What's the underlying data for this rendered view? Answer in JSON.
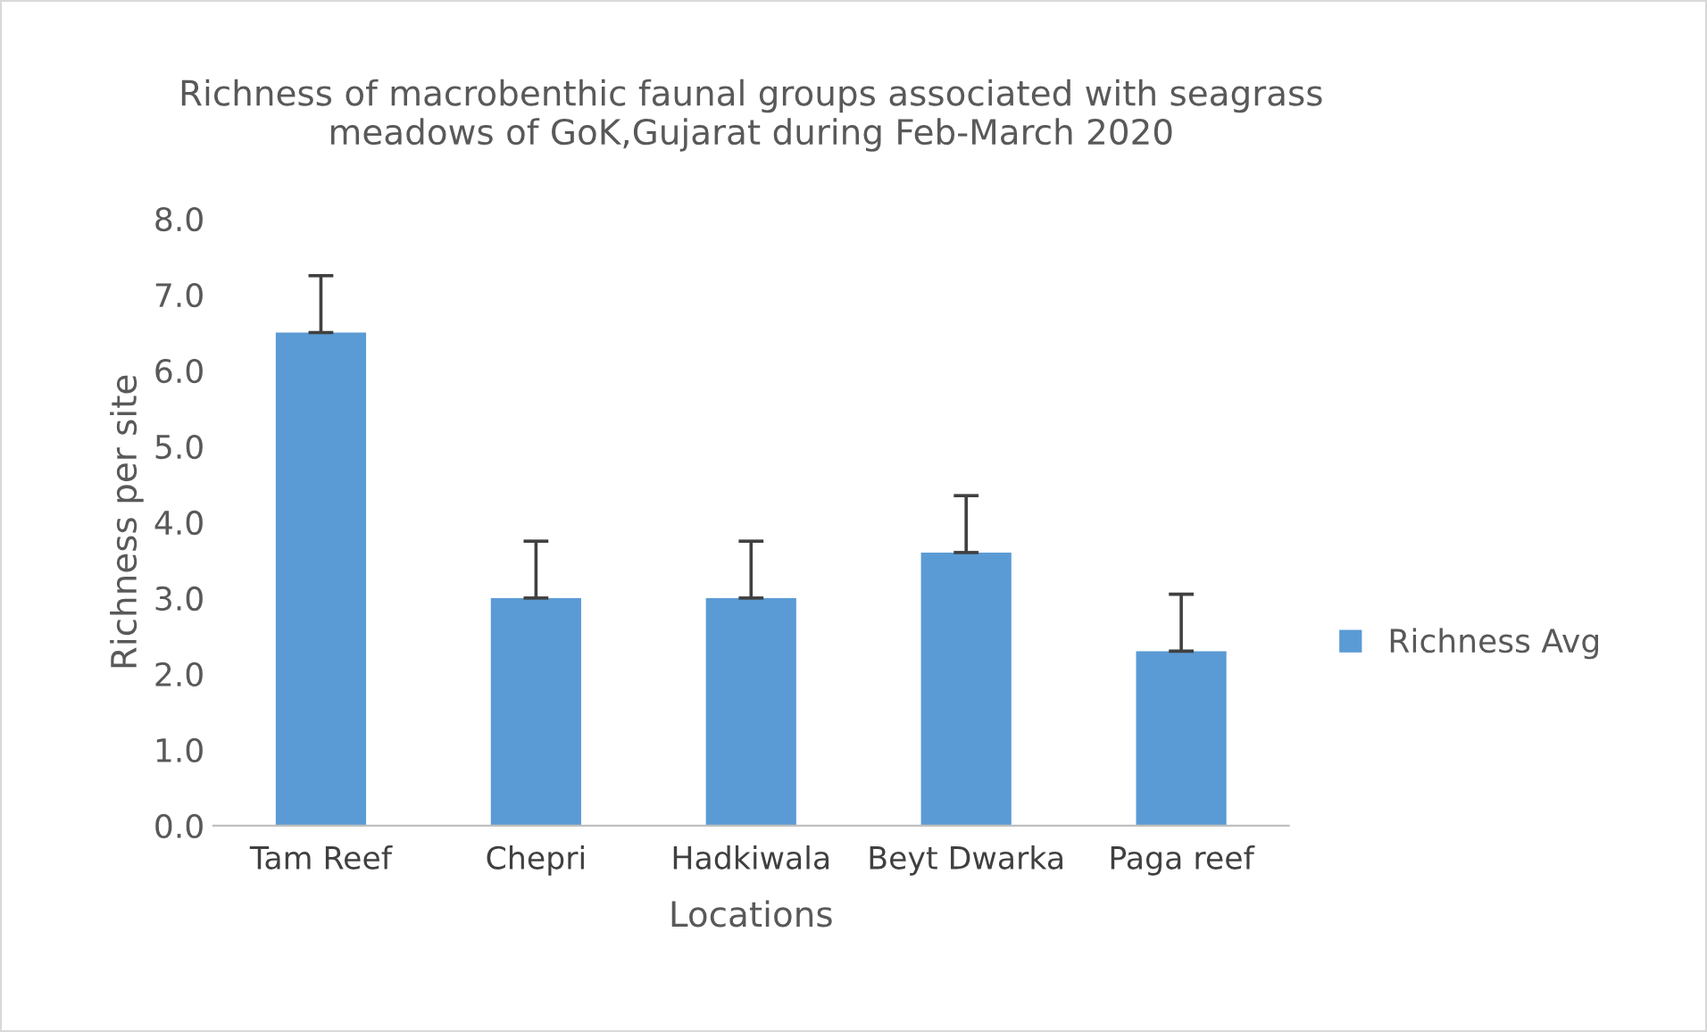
{
  "chart_data": {
    "type": "bar",
    "title": "Richness of macrobenthic faunal groups associated with seagrass\nmeadows of GoK,Gujarat during Feb-March 2020",
    "xlabel": "Locations",
    "ylabel": "Richness per site",
    "categories": [
      "Tam Reef",
      "Chepri",
      "Hadkiwala",
      "Beyt Dwarka",
      "Paga reef"
    ],
    "series": [
      {
        "name": "Richness Avg",
        "color": "#5b9bd5",
        "values": [
          6.5,
          3.0,
          3.0,
          3.6,
          2.3
        ],
        "errors": [
          [
            6.5,
            7.25
          ],
          [
            3.0,
            3.75
          ],
          [
            3.0,
            3.75
          ],
          [
            3.6,
            4.35
          ],
          [
            2.3,
            3.05
          ]
        ]
      }
    ],
    "ylim": [
      0,
      8
    ],
    "yticks": [
      {
        "value": 0,
        "label": "0.0"
      },
      {
        "value": 1,
        "label": "1.0"
      },
      {
        "value": 2,
        "label": "2.0"
      },
      {
        "value": 3,
        "label": "3.0"
      },
      {
        "value": 4,
        "label": "4.0"
      },
      {
        "value": 5,
        "label": "5.0"
      },
      {
        "value": 6,
        "label": "6.0"
      },
      {
        "value": 7,
        "label": "7.0"
      },
      {
        "value": 8,
        "label": "8.0"
      }
    ],
    "grid": false,
    "legend": "right"
  }
}
